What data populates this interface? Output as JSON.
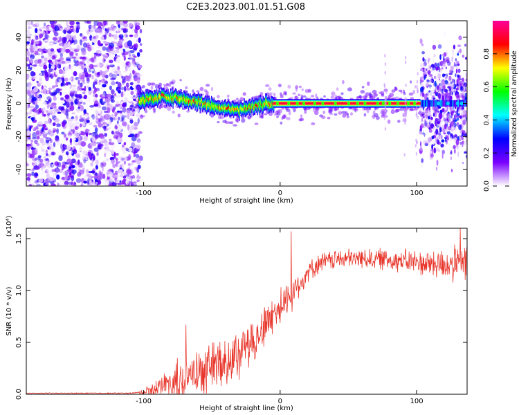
{
  "title": "C2E3.2023.001.01.51.G08",
  "chart_data": [
    {
      "type": "heatmap",
      "xlabel": "Height of straight line (km)",
      "ylabel": "Frequency (Hz)",
      "xlim": [
        -186,
        137
      ],
      "ylim": [
        -50,
        50
      ],
      "xticks": [
        -100,
        0,
        100
      ],
      "yticks": [
        -40,
        -20,
        0,
        20,
        40
      ],
      "colorbar": {
        "label": "Normalized spectral amplitude",
        "range": [
          0,
          1
        ],
        "ticks": [
          "0.0",
          "0.2",
          "0.4",
          "0.6",
          "0.8"
        ],
        "stops": [
          "#ffffff",
          "#7a00ff",
          "#0000ff",
          "#00ffff",
          "#00ff00",
          "#ffff00",
          "#ff0000",
          "#ff0099"
        ]
      },
      "features": {
        "noise_region_x": [
          -186,
          -102
        ],
        "ridge_centerline": [
          [
            -105,
            1
          ],
          [
            -95,
            3
          ],
          [
            -85,
            4
          ],
          [
            -75,
            3
          ],
          [
            -68,
            2
          ],
          [
            -60,
            1
          ],
          [
            -50,
            -2
          ],
          [
            -40,
            -3
          ],
          [
            -30,
            -4
          ],
          [
            -20,
            -2
          ],
          [
            -10,
            0
          ],
          [
            -5,
            0
          ],
          [
            0,
            0
          ],
          [
            20,
            0
          ],
          [
            60,
            0
          ],
          [
            100,
            0
          ],
          [
            137,
            0
          ]
        ],
        "strong_ridge_x": [
          -5,
          103
        ],
        "scatter_region_x": [
          103,
          137
        ]
      }
    },
    {
      "type": "line",
      "xlabel": "Height of straight line (km)",
      "ylabel": "SNR (10 * v/v)",
      "yscale_label": "(x10⁴)",
      "xlim": [
        -186,
        137
      ],
      "ylim": [
        0,
        1.6
      ],
      "xticks": [
        -100,
        0,
        100
      ],
      "yticks": [
        0.0,
        0.5,
        1.0,
        1.5
      ],
      "line_color": "#e8372c",
      "trend": [
        [
          -186,
          0.01
        ],
        [
          -110,
          0.01
        ],
        [
          -100,
          0.02
        ],
        [
          -90,
          0.06
        ],
        [
          -80,
          0.12
        ],
        [
          -70,
          0.18
        ],
        [
          -60,
          0.22
        ],
        [
          -50,
          0.28
        ],
        [
          -40,
          0.33
        ],
        [
          -30,
          0.42
        ],
        [
          -20,
          0.52
        ],
        [
          -10,
          0.68
        ],
        [
          0,
          0.85
        ],
        [
          10,
          1.0
        ],
        [
          20,
          1.18
        ],
        [
          30,
          1.27
        ],
        [
          40,
          1.3
        ],
        [
          60,
          1.31
        ],
        [
          80,
          1.3
        ],
        [
          100,
          1.27
        ],
        [
          120,
          1.25
        ],
        [
          137,
          1.25
        ]
      ],
      "noise_amplitude": [
        [
          -186,
          0.003
        ],
        [
          -105,
          0.005
        ],
        [
          -95,
          0.05
        ],
        [
          -75,
          0.15
        ],
        [
          -50,
          0.18
        ],
        [
          -20,
          0.18
        ],
        [
          0,
          0.15
        ],
        [
          20,
          0.08
        ],
        [
          60,
          0.08
        ],
        [
          100,
          0.1
        ],
        [
          137,
          0.16
        ]
      ],
      "peaks": [
        [
          -69,
          0.67
        ],
        [
          8,
          1.57
        ],
        [
          132,
          1.6
        ]
      ]
    }
  ]
}
